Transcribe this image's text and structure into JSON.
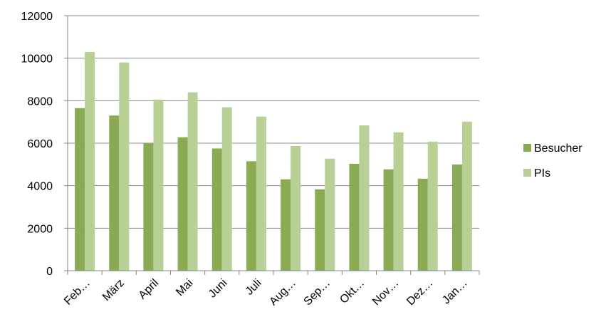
{
  "chart_data": {
    "type": "bar",
    "categories": [
      "Feb…",
      "März",
      "April",
      "Mai",
      "Juni",
      "Juli",
      "Aug…",
      "Sep…",
      "Okt…",
      "Nov…",
      "Dez…",
      "Jan…"
    ],
    "series": [
      {
        "name": "Besucher",
        "color": "#8aab53",
        "values": [
          7650,
          7300,
          6000,
          6280,
          5750,
          5150,
          4300,
          3830,
          5030,
          4770,
          4330,
          5000
        ]
      },
      {
        "name": "PIs",
        "color": "#b8d095",
        "values": [
          10290,
          9800,
          8050,
          8390,
          7690,
          7250,
          5870,
          5270,
          6840,
          6510,
          6070,
          7010
        ]
      }
    ],
    "ylim": [
      0,
      12000
    ],
    "yticks": [
      0,
      2000,
      4000,
      6000,
      8000,
      10000,
      12000
    ],
    "grid": true,
    "legend": "right"
  }
}
